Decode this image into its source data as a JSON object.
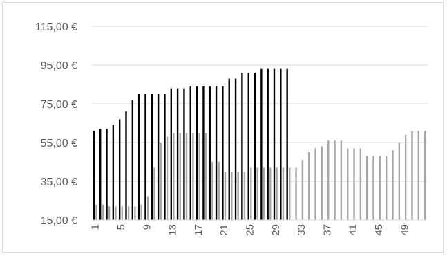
{
  "chart_data": {
    "type": "bar",
    "title": "",
    "xlabel": "",
    "ylabel": "",
    "ylim": [
      15,
      115
    ],
    "yticks": [
      15,
      35,
      55,
      75,
      95,
      115
    ],
    "ytick_labels": [
      "15,00 €",
      "35,00 €",
      "55,00 €",
      "75,00 €",
      "95,00 €",
      "115,00 €"
    ],
    "xtick_labels": [
      "1",
      "5",
      "9",
      "13",
      "17",
      "21",
      "25",
      "29",
      "33",
      "37",
      "41",
      "45",
      "49"
    ],
    "xtick_positions": [
      1,
      5,
      9,
      13,
      17,
      21,
      25,
      29,
      33,
      37,
      41,
      45,
      49
    ],
    "grid": true,
    "legend": "none",
    "x": [
      1,
      2,
      3,
      4,
      5,
      6,
      7,
      8,
      9,
      10,
      11,
      12,
      13,
      14,
      15,
      16,
      17,
      18,
      19,
      20,
      21,
      22,
      23,
      24,
      25,
      26,
      27,
      28,
      29,
      30,
      31,
      32,
      33,
      34,
      35,
      36,
      37,
      38,
      39,
      40,
      41,
      42,
      43,
      44,
      45,
      46,
      47,
      48,
      49,
      50,
      51,
      52
    ],
    "series": [
      {
        "color": "#000000",
        "values": [
          61,
          62,
          62,
          64,
          67,
          71,
          77,
          80,
          80,
          80,
          80,
          80,
          83,
          83,
          83,
          84,
          84,
          84,
          84,
          84,
          84,
          88,
          88,
          91,
          91,
          91,
          93,
          93,
          93,
          93,
          93,
          15,
          15,
          15,
          15,
          15,
          15,
          15,
          15,
          15,
          15,
          15,
          15,
          15,
          15,
          15,
          15,
          15,
          15,
          15,
          15,
          15
        ]
      },
      {
        "color": "#a6a6a6",
        "values": [
          23,
          23,
          22,
          22,
          22,
          22,
          22,
          23,
          27,
          42,
          55,
          58,
          60,
          60,
          60,
          60,
          60,
          60,
          45,
          45,
          40,
          40,
          40,
          40,
          42,
          42,
          42,
          42,
          42,
          42,
          42,
          42,
          46,
          50,
          52,
          53,
          56,
          56,
          56,
          52,
          52,
          52,
          48,
          48,
          48,
          48,
          51,
          55,
          59,
          61,
          61,
          61
        ]
      }
    ]
  }
}
